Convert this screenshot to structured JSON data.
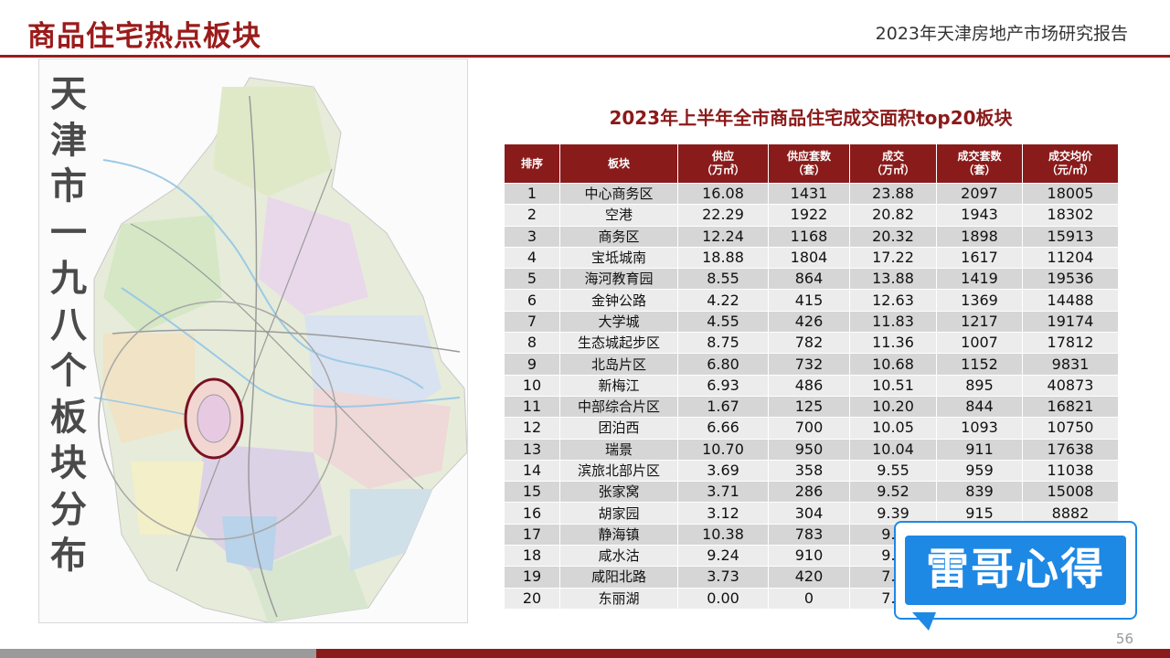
{
  "header": {
    "page_title": "商品住宅热点板块",
    "report_name": "2023年天津房地产市场研究报告"
  },
  "map": {
    "vertical_title": [
      "天",
      "津",
      "市",
      "一",
      "九",
      "八",
      "个",
      "板",
      "块",
      "分",
      "布"
    ]
  },
  "table": {
    "title": "2023年上半年全市商品住宅成交面积top20板块",
    "columns": [
      {
        "line1": "排序",
        "line2": ""
      },
      {
        "line1": "板块",
        "line2": ""
      },
      {
        "line1": "供应",
        "line2": "（万㎡）"
      },
      {
        "line1": "供应套数",
        "line2": "（套）"
      },
      {
        "line1": "成交",
        "line2": "（万㎡）"
      },
      {
        "line1": "成交套数",
        "line2": "（套）"
      },
      {
        "line1": "成交均价",
        "line2": "（元/㎡）"
      }
    ],
    "rows": [
      {
        "rank": "1",
        "block": "中心商务区",
        "supply": "16.08",
        "supply_units": "1431",
        "deal": "23.88",
        "deal_units": "2097",
        "avg_price": "18005"
      },
      {
        "rank": "2",
        "block": "空港",
        "supply": "22.29",
        "supply_units": "1922",
        "deal": "20.82",
        "deal_units": "1943",
        "avg_price": "18302"
      },
      {
        "rank": "3",
        "block": "商务区",
        "supply": "12.24",
        "supply_units": "1168",
        "deal": "20.32",
        "deal_units": "1898",
        "avg_price": "15913"
      },
      {
        "rank": "4",
        "block": "宝坻城南",
        "supply": "18.88",
        "supply_units": "1804",
        "deal": "17.22",
        "deal_units": "1617",
        "avg_price": "11204"
      },
      {
        "rank": "5",
        "block": "海河教育园",
        "supply": "8.55",
        "supply_units": "864",
        "deal": "13.88",
        "deal_units": "1419",
        "avg_price": "19536"
      },
      {
        "rank": "6",
        "block": "金钟公路",
        "supply": "4.22",
        "supply_units": "415",
        "deal": "12.63",
        "deal_units": "1369",
        "avg_price": "14488"
      },
      {
        "rank": "7",
        "block": "大学城",
        "supply": "4.55",
        "supply_units": "426",
        "deal": "11.83",
        "deal_units": "1217",
        "avg_price": "19174"
      },
      {
        "rank": "8",
        "block": "生态城起步区",
        "supply": "8.75",
        "supply_units": "782",
        "deal": "11.36",
        "deal_units": "1007",
        "avg_price": "17812"
      },
      {
        "rank": "9",
        "block": "北岛片区",
        "supply": "6.80",
        "supply_units": "732",
        "deal": "10.68",
        "deal_units": "1152",
        "avg_price": "9831"
      },
      {
        "rank": "10",
        "block": "新梅江",
        "supply": "6.93",
        "supply_units": "486",
        "deal": "10.51",
        "deal_units": "895",
        "avg_price": "40873"
      },
      {
        "rank": "11",
        "block": "中部综合片区",
        "supply": "1.67",
        "supply_units": "125",
        "deal": "10.20",
        "deal_units": "844",
        "avg_price": "16821"
      },
      {
        "rank": "12",
        "block": "团泊西",
        "supply": "6.66",
        "supply_units": "700",
        "deal": "10.05",
        "deal_units": "1093",
        "avg_price": "10750"
      },
      {
        "rank": "13",
        "block": "瑞景",
        "supply": "10.70",
        "supply_units": "950",
        "deal": "10.04",
        "deal_units": "911",
        "avg_price": "17638"
      },
      {
        "rank": "14",
        "block": "滨旅北部片区",
        "supply": "3.69",
        "supply_units": "358",
        "deal": "9.55",
        "deal_units": "959",
        "avg_price": "11038"
      },
      {
        "rank": "15",
        "block": "张家窝",
        "supply": "3.71",
        "supply_units": "286",
        "deal": "9.52",
        "deal_units": "839",
        "avg_price": "15008"
      },
      {
        "rank": "16",
        "block": "胡家园",
        "supply": "3.12",
        "supply_units": "304",
        "deal": "9.39",
        "deal_units": "915",
        "avg_price": "8882"
      },
      {
        "rank": "17",
        "block": "静海镇",
        "supply": "10.38",
        "supply_units": "783",
        "deal": "9.3",
        "deal_units": "",
        "avg_price": ""
      },
      {
        "rank": "18",
        "block": "咸水沽",
        "supply": "9.24",
        "supply_units": "910",
        "deal": "9.3",
        "deal_units": "",
        "avg_price": ""
      },
      {
        "rank": "19",
        "block": "咸阳北路",
        "supply": "3.73",
        "supply_units": "420",
        "deal": "7.6",
        "deal_units": "",
        "avg_price": ""
      },
      {
        "rank": "20",
        "block": "东丽湖",
        "supply": "0.00",
        "supply_units": "0",
        "deal": "7.3",
        "deal_units": "",
        "avg_price": ""
      }
    ]
  },
  "watermark_badge": {
    "text": "雷哥心得"
  },
  "footer": {
    "page_number": "56"
  },
  "colors": {
    "brand_red": "#8a1b1b",
    "badge_blue": "#1e88e5"
  }
}
